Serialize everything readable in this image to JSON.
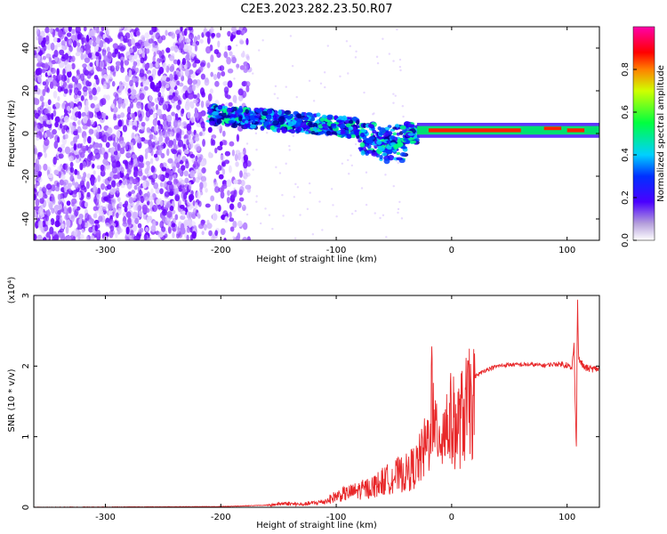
{
  "title": "C2E3.2023.282.23.50.R07",
  "chart_data": [
    {
      "type": "heatmap",
      "xlabel": "Height of straight line (km)",
      "ylabel": "Frequency (Hz)",
      "xlim": [
        -362,
        128
      ],
      "ylim": [
        -50,
        50
      ],
      "x_ticks": [
        -300,
        -200,
        -100,
        0,
        100
      ],
      "y_ticks": [
        -40,
        -20,
        0,
        20,
        40
      ],
      "colorbar": {
        "label": "Normalized spectral amplitude",
        "range": [
          0,
          1
        ],
        "ticks": [
          0.0,
          0.2,
          0.4,
          0.6,
          0.8
        ],
        "tick_labels": [
          "0.0",
          "0.2",
          "0.4",
          "0.6",
          "0.8"
        ],
        "colormap": [
          "#ffffff",
          "#8a2be2",
          "#0000ff",
          "#00ffff",
          "#00ff00",
          "#ffff00",
          "#ff0000",
          "#ff00aa"
        ]
      },
      "regions": [
        {
          "name": "noise",
          "x_range": [
            -362,
            -190
          ],
          "freq_range": [
            -50,
            50
          ],
          "amplitude": 0.15
        },
        {
          "name": "signal-band",
          "x_range": [
            -210,
            -30
          ],
          "center_freq_start": 9,
          "center_freq_end": 0,
          "amplitude": 0.5
        },
        {
          "name": "strong-tone",
          "x_range": [
            -30,
            128
          ],
          "center_freq": 1.5,
          "amplitude": 0.95
        }
      ],
      "grid": false
    },
    {
      "type": "line",
      "xlabel": "Height of straight line (km)",
      "ylabel": "SNR (10 * v/v)",
      "y_multiplier_label": "(x10⁴)",
      "xlim": [
        -362,
        128
      ],
      "ylim": [
        0,
        3
      ],
      "x_ticks": [
        -300,
        -200,
        -100,
        0,
        100
      ],
      "y_ticks": [
        0,
        1,
        2,
        3
      ],
      "series_color": "#e8282a",
      "series": [
        {
          "x": [
            -362,
            -200,
            -160,
            -145,
            -130,
            -110,
            -100,
            -90,
            -80,
            -70,
            -60,
            -50,
            -40,
            -30,
            -25,
            -20,
            -17,
            -15,
            -12,
            -10,
            -5,
            0,
            5,
            10,
            15,
            20,
            25,
            30,
            40,
            50,
            60,
            70,
            80,
            90,
            100,
            104,
            106,
            108,
            109,
            110,
            112,
            115,
            120,
            128
          ],
          "y": [
            0.0,
            0.01,
            0.03,
            0.07,
            0.05,
            0.1,
            0.2,
            0.25,
            0.3,
            0.35,
            0.45,
            0.55,
            0.6,
            0.75,
            0.95,
            1.2,
            2.1,
            1.1,
            1.5,
            1.3,
            1.45,
            1.55,
            1.4,
            1.65,
            1.8,
            1.85,
            1.9,
            1.95,
            2.0,
            2.02,
            2.02,
            2.02,
            2.01,
            2.03,
            2.02,
            1.95,
            2.3,
            0.8,
            3.0,
            2.1,
            2.05,
            1.98,
            1.96,
            1.96
          ]
        }
      ],
      "grid": false
    }
  ]
}
